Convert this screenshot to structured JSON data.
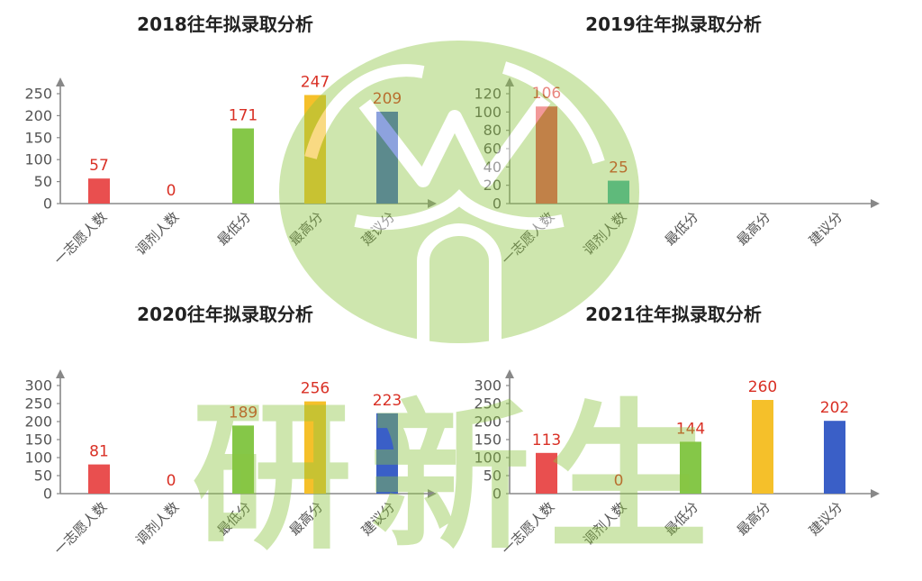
{
  "watermark": {
    "text": "研新生",
    "color": "#8cc63f"
  },
  "chart_data": [
    {
      "type": "bar",
      "title": "2018往年拟录取分析",
      "categories": [
        "一志愿人数",
        "调剂人数",
        "最低分",
        "最高分",
        "建议分"
      ],
      "values": [
        57,
        0,
        171,
        247,
        209
      ],
      "colors": [
        "#e94f4f",
        "#3fb2a8",
        "#85c748",
        "#f5c02a",
        "#3a5fc7"
      ],
      "yticks": [
        0,
        50,
        100,
        150,
        200,
        250
      ],
      "ylim": [
        0,
        250
      ],
      "legend": "none",
      "grid": false
    },
    {
      "type": "bar",
      "title": "2019往年拟录取分析",
      "categories": [
        "一志愿人数",
        "调剂人数",
        "最低分",
        "最高分",
        "建议分"
      ],
      "values": [
        106,
        25,
        null,
        null,
        null
      ],
      "colors": [
        "#e94f4f",
        "#3fb2a8",
        "#85c748",
        "#f5c02a",
        "#3a5fc7"
      ],
      "yticks": [
        0,
        20,
        40,
        60,
        80,
        100,
        120
      ],
      "ylim": [
        0,
        120
      ],
      "legend": "none",
      "grid": false
    },
    {
      "type": "bar",
      "title": "2020往年拟录取分析",
      "categories": [
        "一志愿人数",
        "调剂人数",
        "最低分",
        "最高分",
        "建议分"
      ],
      "values": [
        81,
        0,
        189,
        256,
        223
      ],
      "colors": [
        "#e94f4f",
        "#3fb2a8",
        "#85c748",
        "#f5c02a",
        "#3a5fc7"
      ],
      "yticks": [
        0,
        50,
        100,
        150,
        200,
        250,
        300
      ],
      "ylim": [
        0,
        300
      ],
      "legend": "none",
      "grid": false
    },
    {
      "type": "bar",
      "title": "2021往年拟录取分析",
      "categories": [
        "一志愿人数",
        "调剂人数",
        "最低分",
        "最高分",
        "建议分"
      ],
      "values": [
        113,
        0,
        144,
        260,
        202
      ],
      "colors": [
        "#e94f4f",
        "#3fb2a8",
        "#85c748",
        "#f5c02a",
        "#3a5fc7"
      ],
      "yticks": [
        0,
        50,
        100,
        150,
        200,
        250,
        300
      ],
      "ylim": [
        0,
        300
      ],
      "legend": "none",
      "grid": false
    }
  ]
}
